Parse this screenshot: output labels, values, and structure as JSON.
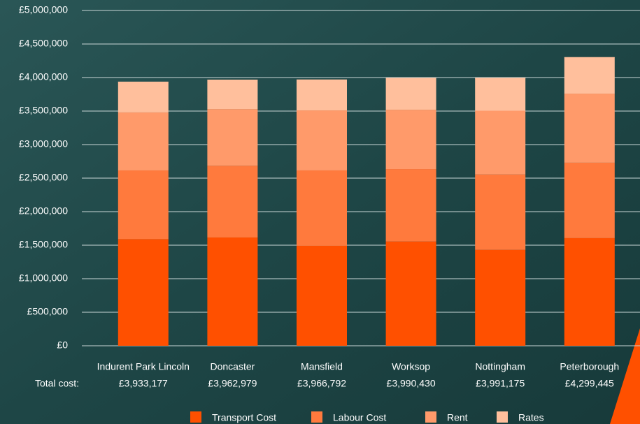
{
  "chart_data": {
    "type": "stacked_bar",
    "categories": [
      "Indurent Park Lincoln",
      "Doncaster",
      "Mansfield",
      "Worksop",
      "Nottingham",
      "Peterborough"
    ],
    "series": [
      {
        "name": "Transport Cost",
        "color": "#ff5000",
        "values": [
          1590000,
          1615000,
          1490000,
          1555000,
          1430000,
          1605000
        ]
      },
      {
        "name": "Labour Cost",
        "color": "#ff7a3d",
        "values": [
          1025000,
          1070000,
          1125000,
          1080000,
          1125000,
          1125000
        ]
      },
      {
        "name": "Rent",
        "color": "#ff9a6a",
        "values": [
          865000,
          845000,
          895000,
          885000,
          950000,
          1030000
        ]
      },
      {
        "name": "Rates",
        "color": "#ffbf9c",
        "values": [
          455000,
          430000,
          455000,
          470000,
          490000,
          540000
        ]
      }
    ],
    "total_heading": "Total cost:",
    "totals": [
      {
        "value": 3933177,
        "label": "£3,933,177"
      },
      {
        "value": 3962979,
        "label": "£3,962,979"
      },
      {
        "value": 3966792,
        "label": "£3,966,792"
      },
      {
        "value": 3990430,
        "label": "£3,990,430"
      },
      {
        "value": 3991175,
        "label": "£3,991,175"
      },
      {
        "value": 4299445,
        "label": "£4,299,445"
      }
    ],
    "ylim": [
      0,
      5000000
    ],
    "yticks": [
      {
        "value": 0,
        "label": "£0"
      },
      {
        "value": 500000,
        "label": "£500,000"
      },
      {
        "value": 1000000,
        "label": "£1,000,000"
      },
      {
        "value": 1500000,
        "label": "£1,500,000"
      },
      {
        "value": 2000000,
        "label": "£2,000,000"
      },
      {
        "value": 2500000,
        "label": "£2,500,000"
      },
      {
        "value": 3000000,
        "label": "£3,000,000"
      },
      {
        "value": 3500000,
        "label": "£3,500,000"
      },
      {
        "value": 4000000,
        "label": "£4,000,000"
      },
      {
        "value": 4500000,
        "label": "£4,500,000"
      },
      {
        "value": 5000000,
        "label": "£5,000,000"
      }
    ],
    "grid": true
  }
}
